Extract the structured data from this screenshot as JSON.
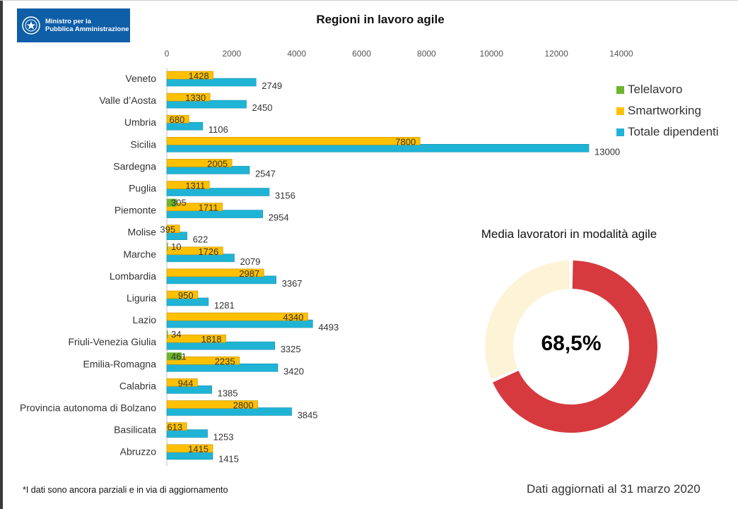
{
  "header": {
    "logo_line1": "Ministro per la",
    "logo_line2": "Pubblica Amministrazione"
  },
  "chart_data": [
    {
      "type": "bar",
      "orientation": "horizontal",
      "title": "Regioni in lavoro agile",
      "xlim": [
        0,
        14000
      ],
      "x_ticks": [
        0,
        2000,
        4000,
        6000,
        8000,
        10000,
        12000,
        14000
      ],
      "x_axis_position": "top",
      "grid": false,
      "legend_position": "right",
      "categories": [
        "Veneto",
        "Valle d’Aosta",
        "Umbria",
        "Sicilia",
        "Sardegna",
        "Puglia",
        "Piemonte",
        "Molise",
        "Marche",
        "Lombardia",
        "Liguria",
        "Lazio",
        "Friuli-Venezia Giulia",
        "Emilia-Romagna",
        "Calabria",
        "Provincia autonoma di Bolzano",
        "Basilicata",
        "Abruzzo"
      ],
      "series": [
        {
          "name": "Telelavoro",
          "color": "#6cb52d",
          "values": [
            null,
            null,
            null,
            null,
            null,
            null,
            305,
            null,
            10,
            null,
            null,
            null,
            34,
            461,
            null,
            null,
            null,
            null
          ]
        },
        {
          "name": "Smartworking",
          "color": "#ffc000",
          "values": [
            1428,
            1330,
            680,
            7800,
            2005,
            1311,
            1711,
            395,
            1726,
            2987,
            950,
            4340,
            1818,
            2235,
            944,
            2800,
            613,
            1415
          ]
        },
        {
          "name": "Totale dipendenti",
          "color": "#1fb4d6",
          "values": [
            2749,
            2450,
            1106,
            13000,
            2547,
            3156,
            2954,
            622,
            2079,
            3367,
            1281,
            4493,
            3325,
            3420,
            1385,
            3845,
            1253,
            1415
          ]
        }
      ]
    },
    {
      "type": "pie",
      "variant": "donut",
      "title": "Media lavoratori in modalità agile",
      "center_label": "68,5%",
      "slices": [
        {
          "value": 68.5,
          "color": "#d63a3f"
        },
        {
          "value": 31.5,
          "color": "#fdf3d6"
        }
      ]
    }
  ],
  "footer": {
    "note": "*I dati sono ancora parziali e in via di aggiornamento",
    "updated": "Dati aggiornati al 31 marzo 2020"
  }
}
